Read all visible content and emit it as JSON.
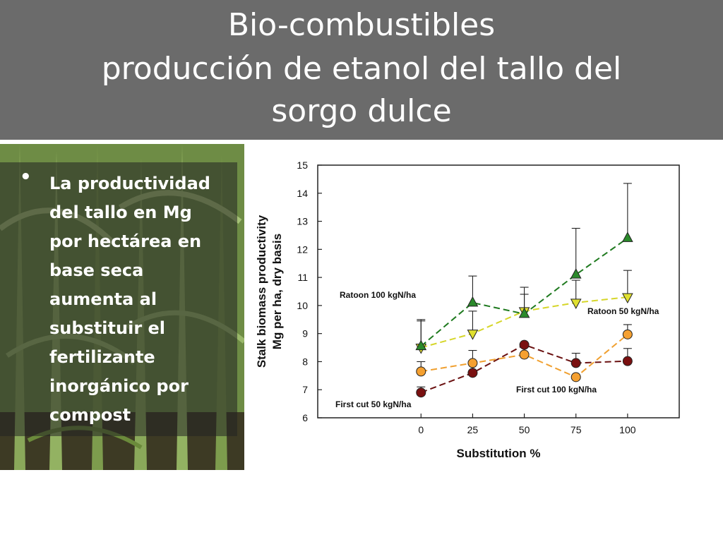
{
  "slide": {
    "title_line1": "Bio-combustibles",
    "title_line2": "producción de etanol del tallo del",
    "title_line3": "sorgo dulce",
    "bullet": "La productividad del tallo en Mg por hectárea en base seca aumenta al substituir el fertilizante inorgánico por compost"
  },
  "colors": {
    "title_bar": "#6b6b6b",
    "ratoon_100": "#2a8a2a",
    "ratoon_50": "#e0e030",
    "first_cut_100": "#f5a030",
    "first_cut_50": "#7a1010"
  },
  "chart_data": {
    "type": "line",
    "title": "",
    "xlabel": "Substitution %",
    "ylabel_line1": "Stalk biomass productivity",
    "ylabel_line2": "Mg per ha, dry basis",
    "x": [
      0,
      25,
      50,
      75,
      100
    ],
    "x_ticks": [
      "0",
      "25",
      "50",
      "75",
      "100"
    ],
    "y_ticks": [
      "6",
      "7",
      "8",
      "9",
      "10",
      "11",
      "12",
      "13",
      "14",
      "15"
    ],
    "xlim": [
      -50,
      125
    ],
    "ylim": [
      6,
      15
    ],
    "grid": false,
    "series": [
      {
        "name": "Ratoon 100 kgN/ha",
        "marker": "triangle-up",
        "values": [
          8.55,
          10.1,
          9.7,
          11.1,
          12.4
        ],
        "err": [
          0.95,
          0.95,
          0.95,
          1.65,
          1.95
        ]
      },
      {
        "name": "Ratoon 50 kgN/ha",
        "marker": "triangle-down",
        "values": [
          8.5,
          9.0,
          9.8,
          10.1,
          10.3
        ],
        "err": [
          0.95,
          0.8,
          0.6,
          0.8,
          0.95
        ]
      },
      {
        "name": "First cut 100 kgN/ha",
        "marker": "circle",
        "values": [
          7.65,
          7.95,
          8.25,
          7.45,
          8.97
        ],
        "err": [
          0.35,
          0.45,
          0.0,
          0.0,
          0.35
        ]
      },
      {
        "name": "First cut 50 kgN/ha",
        "marker": "circle",
        "values": [
          6.9,
          7.6,
          8.6,
          7.95,
          8.02
        ],
        "err": [
          0.2,
          0.35,
          0.0,
          0.35,
          0.45
        ]
      }
    ]
  }
}
